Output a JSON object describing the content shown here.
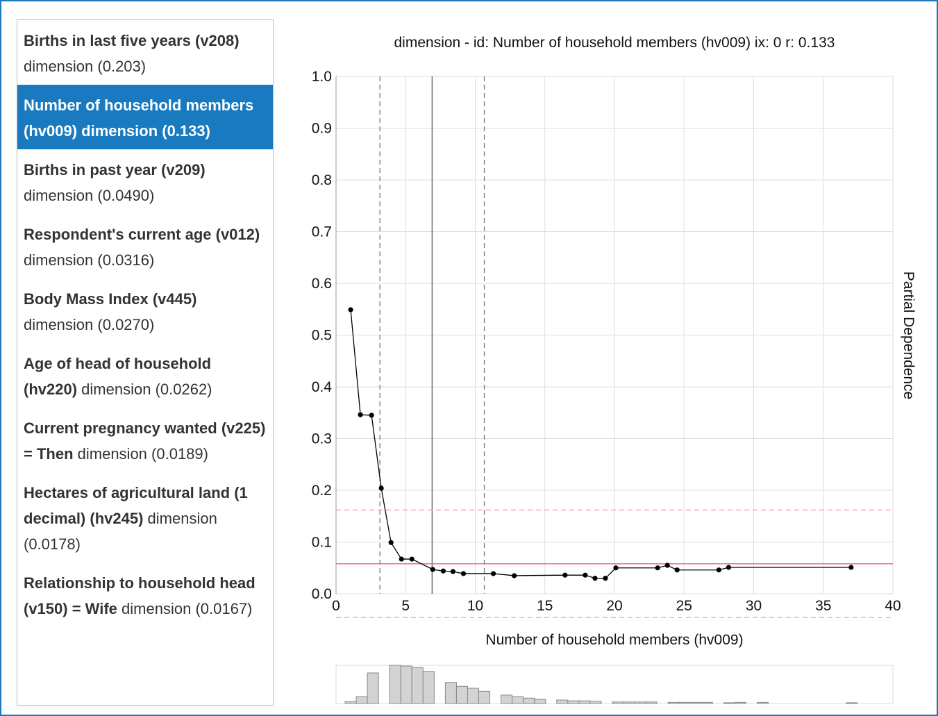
{
  "sidebar": {
    "selected": 1,
    "items": [
      {
        "bold": "Births in last five years (v208)",
        "rest": "dimension (0.203)"
      },
      {
        "bold": "Number of household members (hv009) dimension (0.133)",
        "rest": ""
      },
      {
        "bold": "Births in past year (v209)",
        "rest": "dimension (0.0490)"
      },
      {
        "bold": "Respondent's current age (v012)",
        "rest": "dimension (0.0316)"
      },
      {
        "bold": "Body Mass Index (v445)",
        "rest": "dimension (0.0270)"
      },
      {
        "bold": "Age of head of household (hv220)",
        "rest": "dimension (0.0262)"
      },
      {
        "bold": "Current pregnancy wanted (v225) = Then",
        "rest": "dimension (0.0189)"
      },
      {
        "bold": "Hectares of agricultural land (1 decimal) (hv245)",
        "rest": "dimension (0.0178)"
      },
      {
        "bold": "Relationship to household head (v150) = Wife",
        "rest": "dimension (0.0167)"
      }
    ]
  },
  "chart_data": [
    {
      "type": "line",
      "title": "dimension - id: Number of household members (hv009) ix: 0 r: 0.133",
      "x_label": "Number of household members (hv009)",
      "y_label": "Partial Dependence",
      "x": [
        1.05,
        1.75,
        2.55,
        3.25,
        3.95,
        4.7,
        5.45,
        6.95,
        7.7,
        8.4,
        9.15,
        11.3,
        12.8,
        16.45,
        17.9,
        18.6,
        19.35,
        20.1,
        23.1,
        23.8,
        24.5,
        27.5,
        28.2,
        37.0
      ],
      "values": [
        0.549,
        0.346,
        0.345,
        0.204,
        0.099,
        0.067,
        0.067,
        0.047,
        0.044,
        0.043,
        0.039,
        0.039,
        0.035,
        0.036,
        0.036,
        0.03,
        0.03,
        0.05,
        0.05,
        0.055,
        0.046,
        0.046,
        0.051,
        0.051
      ],
      "color": "#000000",
      "xlim": [
        0,
        40
      ],
      "xticks": [
        0,
        5,
        10,
        15,
        20,
        25,
        30,
        35,
        40
      ],
      "ylim": [
        0,
        1
      ],
      "yticks": [
        {
          "value": 0,
          "label": "0.0"
        },
        0.1,
        0.2,
        0.3,
        0.4,
        0.5,
        0.6,
        0.7,
        0.8,
        0.9,
        {
          "value": 1,
          "label": "1.0"
        }
      ],
      "grid": true,
      "reference_lines": [
        {
          "axis": "x",
          "value": 3.15,
          "style": "dashed",
          "color": "#777777"
        },
        {
          "axis": "x",
          "value": 6.9,
          "style": "solid",
          "color": "#555555"
        },
        {
          "axis": "x",
          "value": 10.65,
          "style": "dashed",
          "color": "#777777"
        },
        {
          "axis": "y",
          "value": 0.058,
          "style": "solid",
          "color": "#f06080"
        },
        {
          "axis": "y",
          "value": 0.162,
          "style": "dashed",
          "color": "#f4a0b8"
        },
        {
          "axis": "y",
          "value": -0.046,
          "style": "dashed",
          "color": "#f4a0b8"
        }
      ]
    },
    {
      "type": "histogram",
      "bins": [
        0.65,
        1.45,
        2.25,
        3.05,
        3.85,
        4.65,
        5.45,
        6.25,
        7.05,
        7.85,
        8.65,
        9.45,
        10.25,
        11.05,
        11.85,
        12.65,
        13.45,
        14.25,
        15.05,
        15.85,
        16.65,
        17.45,
        18.25,
        19.05,
        19.85,
        20.65,
        21.45,
        22.25,
        23.05,
        23.85,
        24.65,
        25.45,
        26.25,
        27.05,
        27.85,
        28.65,
        29.45,
        30.25,
        31.05,
        31.85,
        32.65,
        33.45,
        34.25,
        35.05,
        35.85,
        36.65,
        37.45
      ],
      "counts": [
        5,
        18,
        80,
        0,
        100,
        98,
        94,
        84,
        0,
        55,
        45,
        40,
        32,
        0,
        22,
        18,
        14,
        11,
        0,
        9,
        7,
        7,
        6,
        0,
        4,
        4,
        4,
        4,
        0,
        3,
        3,
        3,
        3,
        0,
        2,
        3,
        0,
        3,
        0,
        0,
        0,
        0,
        0,
        0,
        0,
        2
      ],
      "color": "#d3d3d3",
      "xlim": [
        0,
        40
      ],
      "ylim": [
        0,
        100
      ]
    }
  ]
}
